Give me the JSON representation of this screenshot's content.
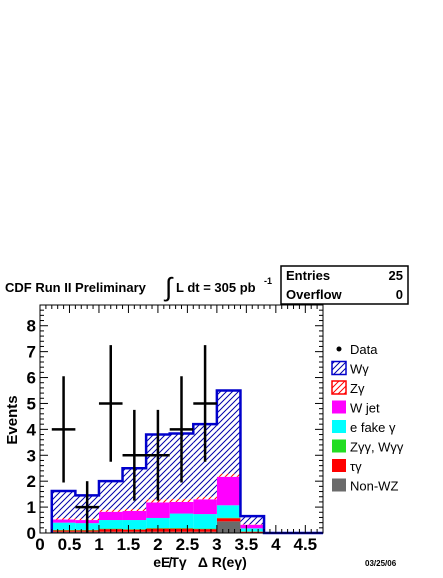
{
  "header": {
    "experiment": "CDF Run II Preliminary",
    "integral_sign": "∫",
    "luminosity_text": "L dt = 305 pb",
    "luminosity_exponent": "-1"
  },
  "stats_box": {
    "entries_label": "Entries",
    "entries_value": "25",
    "overflow_label": "Overflow",
    "overflow_value": "0"
  },
  "date_stamp": "03/25/06",
  "chart_data": {
    "type": "bar",
    "stacked": true,
    "xlabel": "eE̸Tγ   Δ R(eγ)",
    "ylabel": "Events",
    "xlim": [
      0,
      4.8
    ],
    "ylim": [
      0,
      8.8
    ],
    "x_ticks": [
      "0",
      "0.5",
      "1",
      "1.5",
      "2",
      "2.5",
      "3",
      "3.5",
      "4",
      "4.5"
    ],
    "y_ticks": [
      "0",
      "1",
      "2",
      "3",
      "4",
      "5",
      "6",
      "7",
      "8"
    ],
    "bin_edges": [
      0.2,
      0.6,
      1.0,
      1.4,
      1.8,
      2.2,
      2.6,
      3.0,
      3.4,
      3.8,
      4.2,
      4.6,
      4.8
    ],
    "series": [
      {
        "name": "Non-WZ",
        "color": "#6b6b6b",
        "values": [
          0.05,
          0.05,
          0.05,
          0.05,
          0.05,
          0.05,
          0.05,
          0.45,
          0.02,
          0,
          0,
          0
        ]
      },
      {
        "name": "τγ",
        "color": "#ff0000",
        "values": [
          0.05,
          0.05,
          0.1,
          0.08,
          0.12,
          0.12,
          0.1,
          0.12,
          0.03,
          0,
          0,
          0
        ]
      },
      {
        "name": "Zγγ, Wγγ",
        "color": "#22dd22",
        "values": [
          0.02,
          0.02,
          0.02,
          0.02,
          0.02,
          0.02,
          0.02,
          0.02,
          0.01,
          0,
          0,
          0
        ]
      },
      {
        "name": "e fake γ",
        "color": "#00ffff",
        "values": [
          0.28,
          0.26,
          0.33,
          0.35,
          0.39,
          0.56,
          0.56,
          0.48,
          0.12,
          0,
          0,
          0
        ]
      },
      {
        "name": "W jet",
        "color": "#ff00ff",
        "values": [
          0.12,
          0.12,
          0.32,
          0.35,
          0.6,
          0.45,
          0.57,
          1.1,
          0.14,
          0,
          0,
          0
        ]
      },
      {
        "name": "Zγ",
        "color": "#ff0000",
        "hatch": "red",
        "values": [
          0.06,
          0.06,
          0.08,
          0.08,
          0.12,
          0.12,
          0.1,
          0.12,
          0.02,
          0,
          0,
          0
        ]
      },
      {
        "name": "Wγ",
        "color": "#0000cc",
        "hatch": "blue",
        "values": [
          1.04,
          0.89,
          1.1,
          1.57,
          2.5,
          2.52,
          2.8,
          3.21,
          0.31,
          0,
          0,
          0
        ]
      }
    ],
    "data_points": [
      {
        "x": 0.4,
        "y": 4,
        "err": 2.05,
        "xerr": 0.2
      },
      {
        "x": 0.8,
        "y": 1,
        "err": 1.0,
        "xerr": 0.2
      },
      {
        "x": 1.2,
        "y": 5,
        "err": 2.25,
        "xerr": 0.2
      },
      {
        "x": 1.6,
        "y": 3,
        "err": 1.75,
        "xerr": 0.2
      },
      {
        "x": 2.0,
        "y": 3,
        "err": 1.75,
        "xerr": 0.2
      },
      {
        "x": 2.4,
        "y": 4,
        "err": 2.05,
        "xerr": 0.2
      },
      {
        "x": 2.8,
        "y": 5,
        "err": 2.25,
        "xerr": 0.2
      }
    ],
    "legend": {
      "placement": "right",
      "entries": [
        {
          "label": "Data",
          "kind": "marker"
        },
        {
          "label": "Wγ",
          "kind": "hatch-blue"
        },
        {
          "label": "Zγ",
          "kind": "hatch-red"
        },
        {
          "label": "W jet",
          "kind": "fill",
          "color": "#ff00ff"
        },
        {
          "label": "e fake γ",
          "kind": "fill",
          "color": "#00ffff"
        },
        {
          "label": "Zγγ, Wγγ",
          "kind": "fill",
          "color": "#22dd22"
        },
        {
          "label": "τγ",
          "kind": "fill",
          "color": "#ff0000"
        },
        {
          "label": "Non-WZ",
          "kind": "fill",
          "color": "#6b6b6b"
        }
      ]
    }
  }
}
